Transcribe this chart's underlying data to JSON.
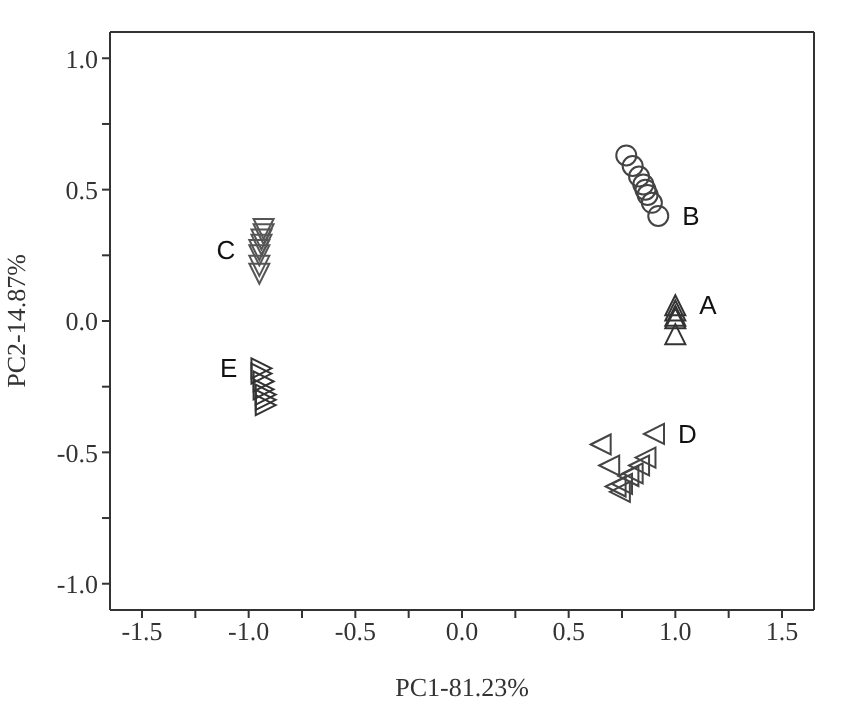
{
  "chart_data": {
    "type": "scatter",
    "xlabel": "PC1-81.23%",
    "ylabel": "PC2-14.87%",
    "xlim": [
      -1.65,
      1.65
    ],
    "ylim": [
      -1.1,
      1.1
    ],
    "xticks": [
      -1.5,
      {
        "value": -1.25,
        "label": null
      },
      {
        "value": -1.0,
        "label": "-1.0"
      },
      {
        "value": -0.75,
        "label": null
      },
      -0.5,
      {
        "value": -0.25,
        "label": null
      },
      {
        "value": 0,
        "label": "0.0"
      },
      {
        "value": 0.25,
        "label": null
      },
      0.5,
      {
        "value": 0.75,
        "label": null
      },
      {
        "value": 1.0,
        "label": "1.0"
      },
      {
        "value": 1.25,
        "label": null
      },
      1.5
    ],
    "yticks": [
      {
        "value": -1.0,
        "label": "-1.0"
      },
      {
        "value": -0.75,
        "label": null
      },
      -0.5,
      {
        "value": -0.25,
        "label": null
      },
      {
        "value": 0,
        "label": "0.0"
      },
      {
        "value": 0.25,
        "label": null
      },
      0.5,
      {
        "value": 0.75,
        "label": null
      },
      {
        "value": 1.0,
        "label": "1.0"
      }
    ],
    "legend": false,
    "series": [
      {
        "name": "A",
        "color": "#333333",
        "marker": "triangle-up",
        "x": [
          1.0,
          1.0,
          1.0,
          1.0,
          1.0
        ],
        "values": [
          0.06,
          0.04,
          0.02,
          0.01,
          -0.05
        ]
      },
      {
        "name": "B",
        "color": "#444444",
        "marker": "circle",
        "x": [
          0.77,
          0.8,
          0.83,
          0.85,
          0.86,
          0.87,
          0.89,
          0.92
        ],
        "values": [
          0.63,
          0.59,
          0.55,
          0.52,
          0.5,
          0.48,
          0.45,
          0.4
        ]
      },
      {
        "name": "C",
        "color": "#555555",
        "marker": "triangle-down",
        "x": [
          -0.93,
          -0.93,
          -0.94,
          -0.94,
          -0.95,
          -0.95,
          -0.95,
          -0.95
        ],
        "values": [
          0.35,
          0.33,
          0.31,
          0.29,
          0.27,
          0.25,
          0.21,
          0.18
        ]
      },
      {
        "name": "D",
        "color": "#444444",
        "marker": "triangle-left",
        "x": [
          0.65,
          0.69,
          0.72,
          0.74,
          0.75,
          0.78,
          0.8,
          0.83,
          0.86,
          0.9
        ],
        "values": [
          -0.47,
          -0.55,
          -0.63,
          -0.65,
          -0.62,
          -0.59,
          -0.58,
          -0.55,
          -0.52,
          -0.43
        ]
      },
      {
        "name": "E",
        "color": "#333333",
        "marker": "triangle-right",
        "x": [
          -0.94,
          -0.94,
          -0.93,
          -0.93,
          -0.92,
          -0.92,
          -0.92
        ],
        "values": [
          -0.18,
          -0.2,
          -0.23,
          -0.26,
          -0.28,
          -0.3,
          -0.32
        ]
      }
    ]
  }
}
